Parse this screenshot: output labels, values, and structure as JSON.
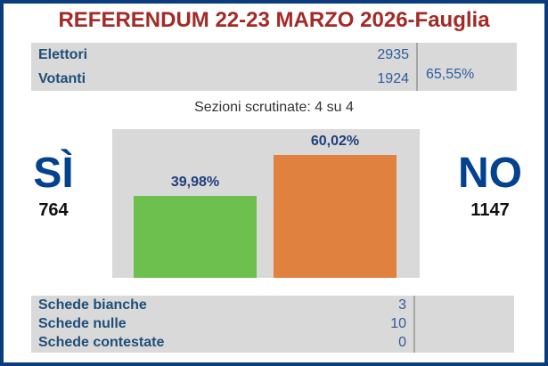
{
  "title": "REFERENDUM 22-23 MARZO 2026-Fauglia",
  "turnout_table": {
    "rows": [
      {
        "label": "Elettori",
        "value": "2935",
        "pct": ""
      },
      {
        "label": "Votanti",
        "value": "1924",
        "pct": "65,55%"
      }
    ]
  },
  "sections_status": "Sezioni scrutinate: 4 su 4",
  "results": {
    "yes": {
      "label": "SÌ",
      "votes": "764",
      "pct": "39,98%",
      "color": "#6EC04E"
    },
    "no": {
      "label": "NO",
      "votes": "1147",
      "pct": "60,02%",
      "color": "#E0813F"
    }
  },
  "chart_data": {
    "type": "bar",
    "categories": [
      "SÌ",
      "NO"
    ],
    "values": [
      39.98,
      60.02
    ],
    "value_labels": [
      "39,98%",
      "60,02%"
    ],
    "votes": [
      764,
      1147
    ],
    "colors": [
      "#6EC04E",
      "#E0813F"
    ],
    "title": "",
    "xlabel": "",
    "ylabel": "",
    "ylim": [
      0,
      72.6
    ],
    "grid": false,
    "legend": false,
    "plot_bg": "#D9D9D9"
  },
  "ballots_table": {
    "rows": [
      {
        "label": "Schede bianche",
        "value": "3",
        "pct": ""
      },
      {
        "label": "Schede nulle",
        "value": "10",
        "pct": ""
      },
      {
        "label": "Schede contestate",
        "value": "0",
        "pct": ""
      }
    ]
  },
  "colors": {
    "border_blue": "#0B3D7E",
    "title_red": "#A32A26",
    "label_blue": "#1F4E79",
    "value_blue": "#2E5B9B",
    "answer_blue": "#04418F",
    "bar_green": "#6EC04E",
    "bar_orange": "#E0813F",
    "panel_gray": "#D9D9D9",
    "divider_gray": "#A6A6A6"
  }
}
